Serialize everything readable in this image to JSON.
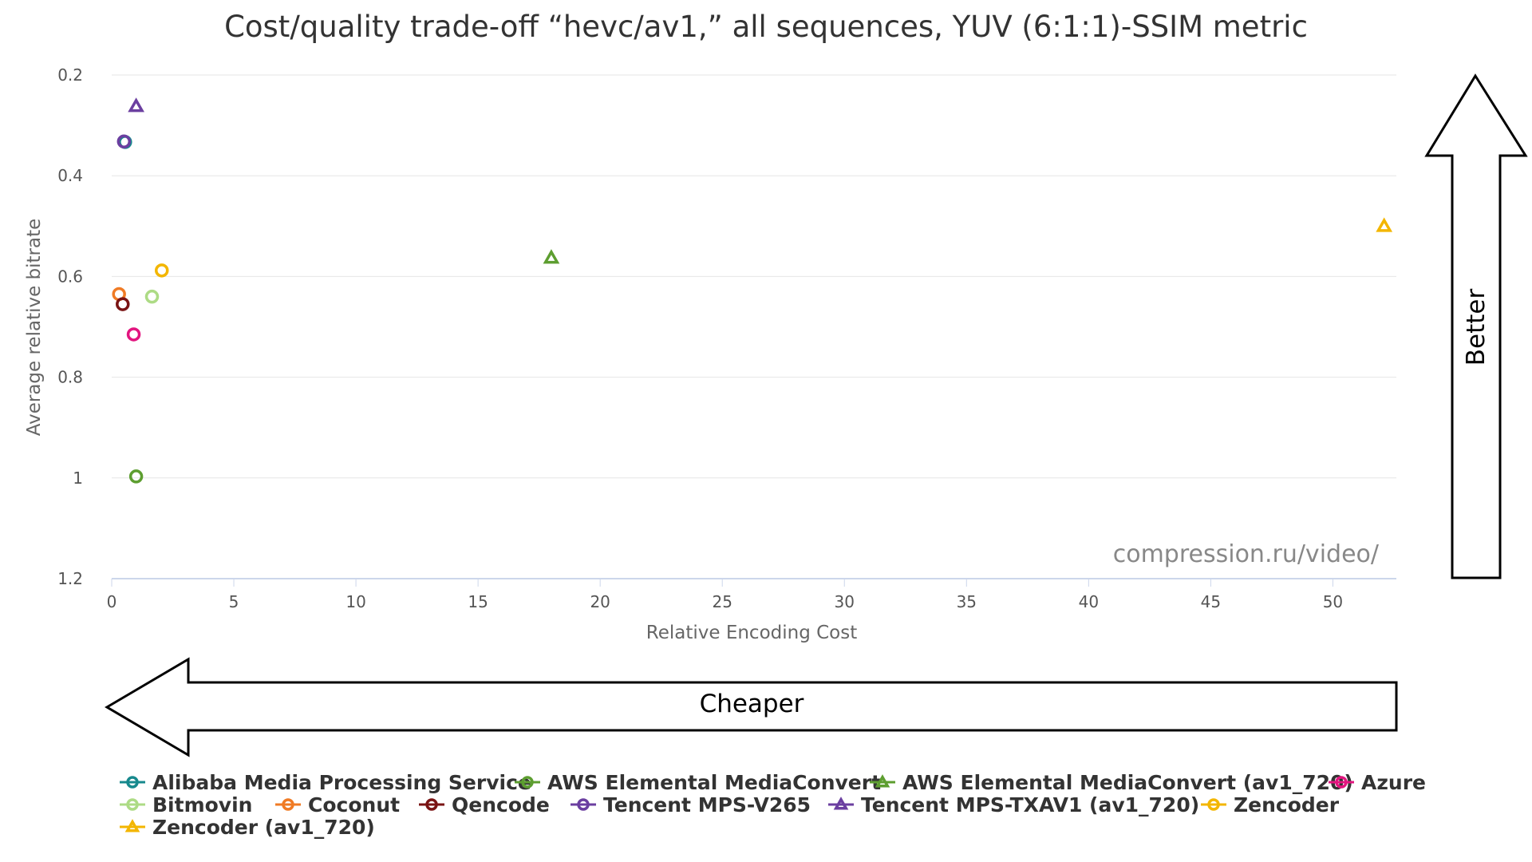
{
  "chart_data": {
    "type": "scatter",
    "title": "Cost/quality trade-off “hevc/av1,” all sequences, YUV (6:1:1)-SSIM metric",
    "xlabel": "Relative Encoding Cost",
    "ylabel": "Average relative bitrate",
    "xlim": [
      0,
      52.6
    ],
    "ylim": [
      0.2,
      1.2
    ],
    "y_reversed": true,
    "x_ticks": [
      "0",
      "5",
      "10",
      "15",
      "20",
      "25",
      "30",
      "35",
      "40",
      "45",
      "50"
    ],
    "y_ticks": [
      "0.2",
      "0.4",
      "0.6",
      "0.8",
      "1",
      "1.2"
    ],
    "grid": "horizontal",
    "legend_position": "bottom",
    "series": [
      {
        "name": "Alibaba Media Processing Service",
        "color": "#17898d",
        "marker": "circle",
        "points": [
          {
            "x": 0.55,
            "y": 0.333
          }
        ]
      },
      {
        "name": "AWS Elemental MediaConvert",
        "color": "#5d9e30",
        "marker": "circle",
        "points": [
          {
            "x": 1.0,
            "y": 0.997
          }
        ]
      },
      {
        "name": "AWS Elemental MediaConvert (av1_720)",
        "color": "#5d9e30",
        "marker": "triangle",
        "points": [
          {
            "x": 18.0,
            "y": 0.563
          }
        ]
      },
      {
        "name": "Azure",
        "color": "#e2157f",
        "marker": "circle",
        "points": [
          {
            "x": 0.9,
            "y": 0.715
          }
        ]
      },
      {
        "name": "Bitmovin",
        "color": "#addb85",
        "marker": "circle",
        "points": [
          {
            "x": 1.65,
            "y": 0.64
          }
        ]
      },
      {
        "name": "Coconut",
        "color": "#f07b25",
        "marker": "circle",
        "points": [
          {
            "x": 0.3,
            "y": 0.635
          }
        ]
      },
      {
        "name": "Qencode",
        "color": "#7a1414",
        "marker": "circle",
        "points": [
          {
            "x": 0.45,
            "y": 0.655
          }
        ]
      },
      {
        "name": "Tencent MPS-V265",
        "color": "#6b3fa0",
        "marker": "circle",
        "points": [
          {
            "x": 0.5,
            "y": 0.332
          }
        ]
      },
      {
        "name": "Tencent MPS-TXAV1 (av1_720)",
        "color": "#6b3fa0",
        "marker": "triangle",
        "points": [
          {
            "x": 1.0,
            "y": 0.262
          }
        ]
      },
      {
        "name": "Zencoder",
        "color": "#f3b600",
        "marker": "circle",
        "points": [
          {
            "x": 2.05,
            "y": 0.588
          }
        ]
      },
      {
        "name": "Zencoder (av1_720)",
        "color": "#f3b600",
        "marker": "triangle",
        "points": [
          {
            "x": 52.1,
            "y": 0.5
          }
        ]
      }
    ]
  },
  "annotations": {
    "watermark": "compression.ru/video/",
    "better_label": "Better",
    "cheaper_label": "Cheaper"
  }
}
